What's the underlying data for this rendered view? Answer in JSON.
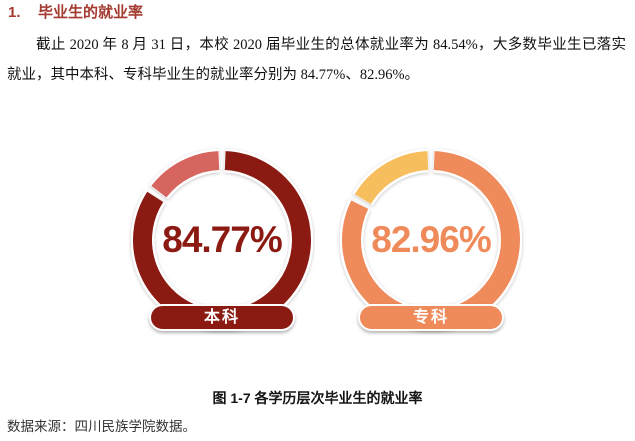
{
  "document": {
    "heading": {
      "number": "1.",
      "title": "毕业生的就业率",
      "color": "#A43A30"
    },
    "paragraph": "截止 2020 年 8 月 31 日，本校 2020 届毕业生的总体就业率为 84.54%，大多数毕业生已落实就业，其中本科、专科毕业生的就业率分别为 84.77%、82.96%。",
    "caption": "图 1-7 各学历层次毕业生的就业率",
    "source": "数据来源：四川民族学院数据。"
  },
  "chart_data": {
    "type": "pie",
    "subtype": "donut-gauge-pair",
    "title": "图 1-7 各学历层次毕业生的就业率",
    "categories": [
      "本科",
      "专科"
    ],
    "values": [
      84.77,
      82.96
    ],
    "gauges": [
      {
        "category": "本科",
        "value": 84.77,
        "value_label": "84.77%",
        "remainder": 15.23,
        "ring_color": "#8B1B12",
        "remainder_color": "#D6655F",
        "text_color": "#8B1B12",
        "pill_color": "#8B1B12"
      },
      {
        "category": "专科",
        "value": 82.96,
        "value_label": "82.96%",
        "remainder": 17.04,
        "ring_color": "#EF8A5B",
        "remainder_color": "#F6BE5C",
        "text_color": "#EF8A5B",
        "pill_color": "#EF8A5B"
      }
    ],
    "overall_rate_mentioned_in_text": "84.54%",
    "legend_position": "none",
    "grid": false
  }
}
